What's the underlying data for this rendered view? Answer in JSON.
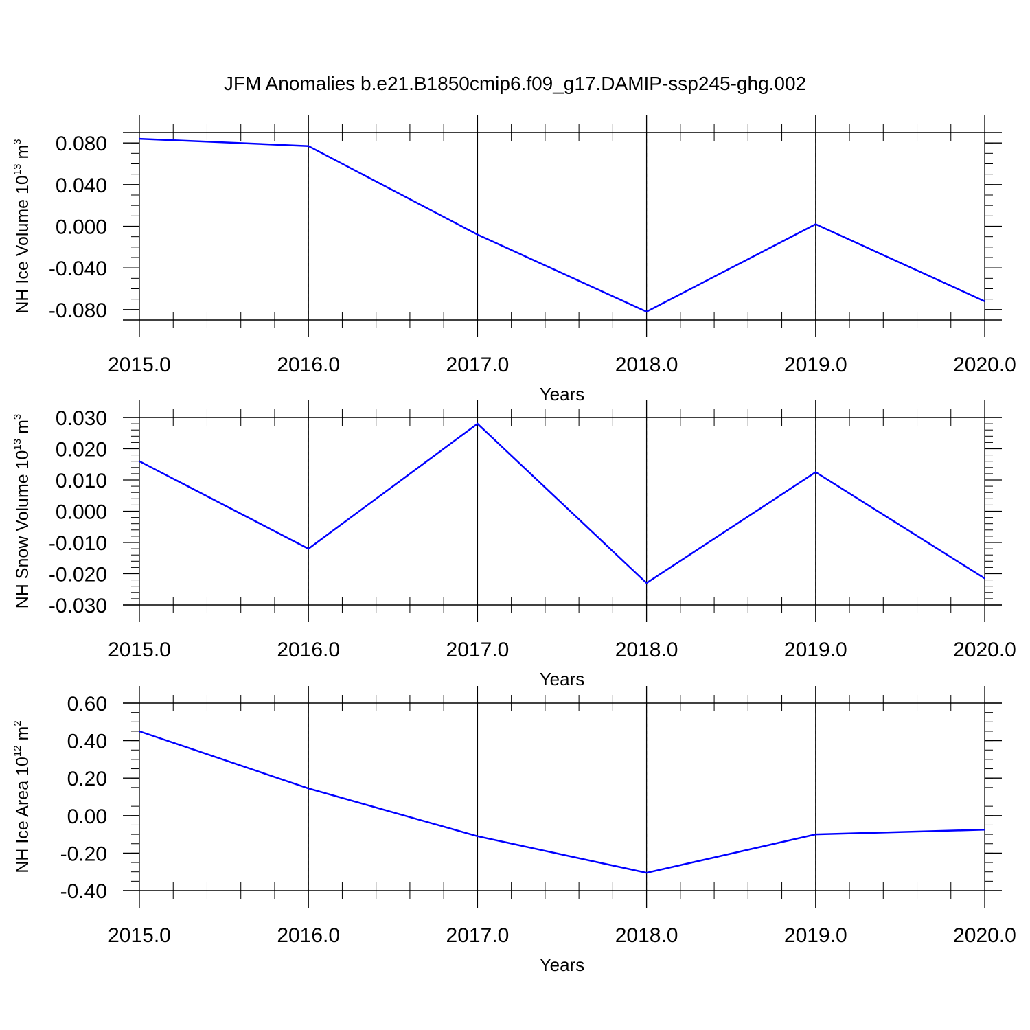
{
  "title": "JFM Anomalies b.e21.B1850cmip6.f09_g17.DAMIP-ssp245-ghg.002",
  "chart_data": [
    {
      "type": "line",
      "x": [
        2015,
        2016,
        2017,
        2018,
        2019,
        2020
      ],
      "series": [
        {
          "values": [
            0.084,
            0.077,
            -0.008,
            -0.082,
            0.002,
            -0.072
          ],
          "color": "#0000ff"
        }
      ],
      "xlabel": "Years",
      "xticks": [
        "2015.0",
        "2016.0",
        "2017.0",
        "2018.0",
        "2019.0",
        "2020.0"
      ],
      "ylabel": {
        "base": "NH Ice Volume 10",
        "exp": "13",
        "unit": " m",
        "unit_exp": "3"
      },
      "yticks": [
        "0.080",
        "0.040",
        "0.000",
        "-0.040",
        "-0.080"
      ],
      "ytick_values": [
        0.08,
        0.04,
        0.0,
        -0.04,
        -0.08
      ],
      "xlim": [
        2015,
        2020
      ],
      "ylim": [
        -0.09,
        0.09
      ],
      "grid": "vertical-dashed"
    },
    {
      "type": "line",
      "x": [
        2015,
        2016,
        2017,
        2018,
        2019,
        2020
      ],
      "series": [
        {
          "values": [
            0.016,
            -0.012,
            0.028,
            -0.023,
            0.0125,
            -0.0215
          ],
          "color": "#0000ff"
        }
      ],
      "xlabel": "Years",
      "xticks": [
        "2015.0",
        "2016.0",
        "2017.0",
        "2018.0",
        "2019.0",
        "2020.0"
      ],
      "ylabel": {
        "base": "NH Snow Volume 10",
        "exp": "13",
        "unit": " m",
        "unit_exp": "3"
      },
      "yticks": [
        "0.030",
        "0.020",
        "0.010",
        "0.000",
        "-0.010",
        "-0.020",
        "-0.030"
      ],
      "ytick_values": [
        0.03,
        0.02,
        0.01,
        0.0,
        -0.01,
        -0.02,
        -0.03
      ],
      "xlim": [
        2015,
        2020
      ],
      "ylim": [
        -0.03,
        0.03
      ],
      "grid": "vertical-dashed"
    },
    {
      "type": "line",
      "x": [
        2015,
        2016,
        2017,
        2018,
        2019,
        2020
      ],
      "series": [
        {
          "values": [
            0.45,
            0.145,
            -0.11,
            -0.305,
            -0.1,
            -0.075
          ],
          "color": "#0000ff"
        }
      ],
      "xlabel": "Years",
      "xticks": [
        "2015.0",
        "2016.0",
        "2017.0",
        "2018.0",
        "2019.0",
        "2020.0"
      ],
      "ylabel": {
        "base": "NH Ice Area 10",
        "exp": "12",
        "unit": " m",
        "unit_exp": "2"
      },
      "yticks": [
        "0.60",
        "0.40",
        "0.20",
        "0.00",
        "-0.20",
        "-0.40"
      ],
      "ytick_values": [
        0.6,
        0.4,
        0.2,
        0.0,
        -0.2,
        -0.4
      ],
      "xlim": [
        2015,
        2020
      ],
      "ylim": [
        -0.4,
        0.6
      ],
      "grid": "vertical-dashed"
    }
  ]
}
